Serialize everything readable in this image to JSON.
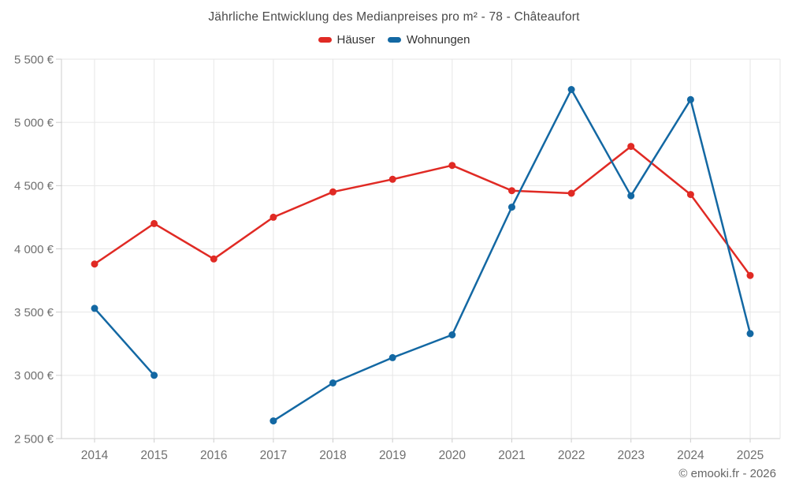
{
  "chart_data": {
    "type": "line",
    "title": "Jährliche Entwicklung des Medianpreises pro m² - 78 - Châteaufort",
    "xlabel": "",
    "ylabel": "",
    "categories": [
      "2014",
      "2015",
      "2016",
      "2017",
      "2018",
      "2019",
      "2020",
      "2021",
      "2022",
      "2023",
      "2024",
      "2025"
    ],
    "series": [
      {
        "name": "Häuser",
        "color": "#e02a24",
        "values": [
          3880,
          4200,
          3920,
          4250,
          4450,
          4550,
          4660,
          4460,
          4440,
          4810,
          4430,
          3790
        ]
      },
      {
        "name": "Wohnungen",
        "color": "#1368a3",
        "values": [
          3530,
          3000,
          null,
          2640,
          2940,
          3140,
          3320,
          4330,
          5260,
          4420,
          5180,
          3330
        ]
      }
    ],
    "ylim": [
      2500,
      5500
    ],
    "ytick_step": 500,
    "ytick_labels": [
      "2 500 €",
      "3 000 €",
      "3 500 €",
      "4 000 €",
      "4 500 €",
      "5 000 €",
      "5 500 €"
    ],
    "grid": true,
    "legend_position": "top",
    "currency_suffix": "€"
  },
  "footer": {
    "credits": "© emooki.fr - 2026"
  },
  "colors": {
    "grid_line": "#e6e6e6",
    "axis_line": "#cccccc",
    "axis_label": "#6f6f6f",
    "title_text": "#4a4a4a",
    "legend_text": "#333333",
    "credits_text": "#666666"
  }
}
